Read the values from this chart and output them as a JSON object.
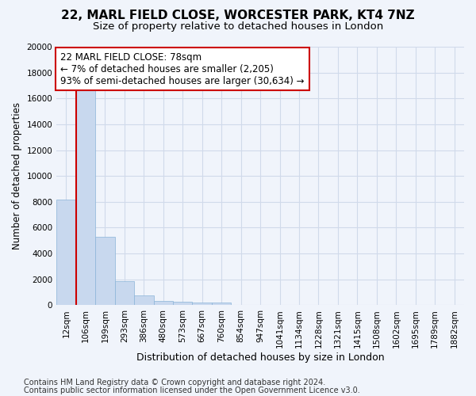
{
  "title1": "22, MARL FIELD CLOSE, WORCESTER PARK, KT4 7NZ",
  "title2": "Size of property relative to detached houses in London",
  "xlabel": "Distribution of detached houses by size in London",
  "ylabel": "Number of detached properties",
  "categories": [
    "12sqm",
    "106sqm",
    "199sqm",
    "293sqm",
    "386sqm",
    "480sqm",
    "573sqm",
    "667sqm",
    "760sqm",
    "854sqm",
    "947sqm",
    "1041sqm",
    "1134sqm",
    "1228sqm",
    "1321sqm",
    "1415sqm",
    "1508sqm",
    "1602sqm",
    "1695sqm",
    "1789sqm",
    "1882sqm"
  ],
  "values": [
    8200,
    16600,
    5300,
    1850,
    780,
    330,
    240,
    230,
    220,
    0,
    0,
    0,
    0,
    0,
    0,
    0,
    0,
    0,
    0,
    0,
    0
  ],
  "bar_color": "#c8d8ee",
  "bar_edgecolor": "#8ab4d8",
  "highlight_color": "#cc0000",
  "annotation_text": "22 MARL FIELD CLOSE: 78sqm\n← 7% of detached houses are smaller (2,205)\n93% of semi-detached houses are larger (30,634) →",
  "annotation_box_color": "#ffffff",
  "annotation_box_edgecolor": "#cc0000",
  "ylim": [
    0,
    20000
  ],
  "yticks": [
    0,
    2000,
    4000,
    6000,
    8000,
    10000,
    12000,
    14000,
    16000,
    18000,
    20000
  ],
  "footer1": "Contains HM Land Registry data © Crown copyright and database right 2024.",
  "footer2": "Contains public sector information licensed under the Open Government Licence v3.0.",
  "bg_color": "#f0f4fb",
  "grid_color": "#d0daea",
  "title1_fontsize": 11,
  "title2_fontsize": 9.5,
  "xlabel_fontsize": 9,
  "ylabel_fontsize": 8.5,
  "tick_fontsize": 7.5,
  "annotation_fontsize": 8.5,
  "footer_fontsize": 7
}
